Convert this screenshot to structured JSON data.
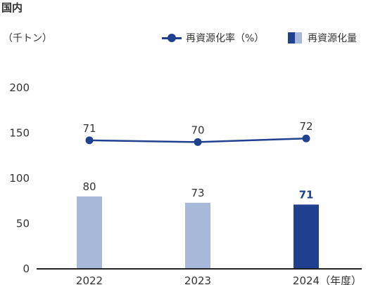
{
  "header": {
    "title": "国内",
    "unit": "（千トン）"
  },
  "legend": {
    "line_label": "再資源化率（%）",
    "bar_label": "再資源化量"
  },
  "colors": {
    "bar_light": "#a8b8d8",
    "bar_dark": "#20418f",
    "line": "#20418f",
    "axis": "#222222"
  },
  "chart_data": {
    "type": "bar",
    "categories": [
      "2022",
      "2023",
      "2024"
    ],
    "x_suffix": "（年度）",
    "ylim": [
      0,
      200
    ],
    "yticks": [
      "0",
      "50",
      "100",
      "150",
      "200"
    ],
    "series": [
      {
        "name": "再資源化量",
        "type": "bar",
        "values": [
          80,
          73,
          71
        ],
        "highlight_index": 2
      },
      {
        "name": "再資源化率（%）",
        "type": "line",
        "values": [
          71,
          70,
          72
        ],
        "plotted_on_left_axis": [
          142,
          140,
          144
        ]
      }
    ],
    "grid": false,
    "legend_position": "top-right"
  }
}
